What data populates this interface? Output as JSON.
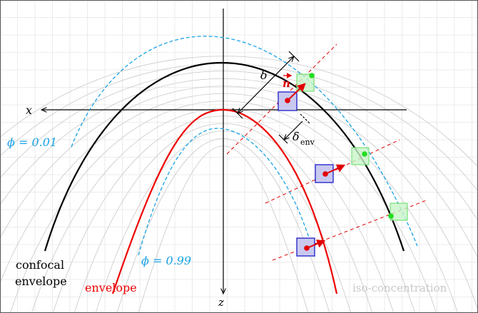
{
  "labels": {
    "x_axis": "x",
    "z_axis": "z",
    "delta": "δ",
    "delta_env_base": "δ",
    "delta_env_sub": "env",
    "normal": "n",
    "phi_outer": "ϕ = 0.01",
    "phi_inner": "ϕ = 0.99",
    "confocal_line1": "confocal",
    "confocal_line2": "envelope",
    "envelope": "envelope",
    "iso": "iso-concentration"
  },
  "colors": {
    "envelope": "#ee0000",
    "confocal": "#000000",
    "phi_contour": "#1aa3e6",
    "normal_arrow": "#e00000",
    "iso_lines": "#c8c8c8",
    "grid": "#e6e6e6",
    "blue_box_fill": "#c9c9f0",
    "blue_box_stroke": "#1c1cc8",
    "green_box_fill": "#c8f5c8",
    "green_box_stroke": "#66dd66",
    "green_dot": "#22dd22",
    "iso_label": "#c8c8c8"
  },
  "icons": {
    "normal_arrow_head": "vector-arrow-icon"
  }
}
